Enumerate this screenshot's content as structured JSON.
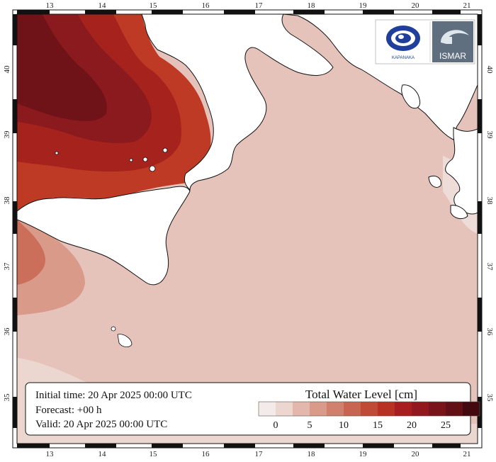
{
  "map": {
    "longitude_ticks": [
      "13",
      "14",
      "15",
      "16",
      "17",
      "18",
      "19",
      "20",
      "21"
    ],
    "latitude_ticks": [
      "40",
      "39",
      "38",
      "37",
      "36",
      "35"
    ]
  },
  "info_box": {
    "initial_time": "Initial time: 20 Apr 2025 00:00 UTC",
    "forecast": "Forecast: +00 h",
    "valid": "Valid: 20 Apr 2025 00:00 UTC"
  },
  "legend": {
    "title": "Total Water Level [cm]",
    "tick_labels": [
      "0",
      "5",
      "10",
      "15",
      "20",
      "25"
    ],
    "colors": [
      "#f3ebe9",
      "#ecd6d0",
      "#e3b7ab",
      "#d99a8a",
      "#d0806c",
      "#c86551",
      "#bf4b37",
      "#b83224",
      "#a81d1f",
      "#921820",
      "#7a141b",
      "#621016",
      "#420a0e"
    ]
  },
  "logos": {
    "left": {
      "text": "KAPANAKA",
      "icon": "eye-swirl-icon"
    },
    "right": {
      "text": "ISMAR",
      "icon": "ismar-emblem-icon"
    }
  }
}
